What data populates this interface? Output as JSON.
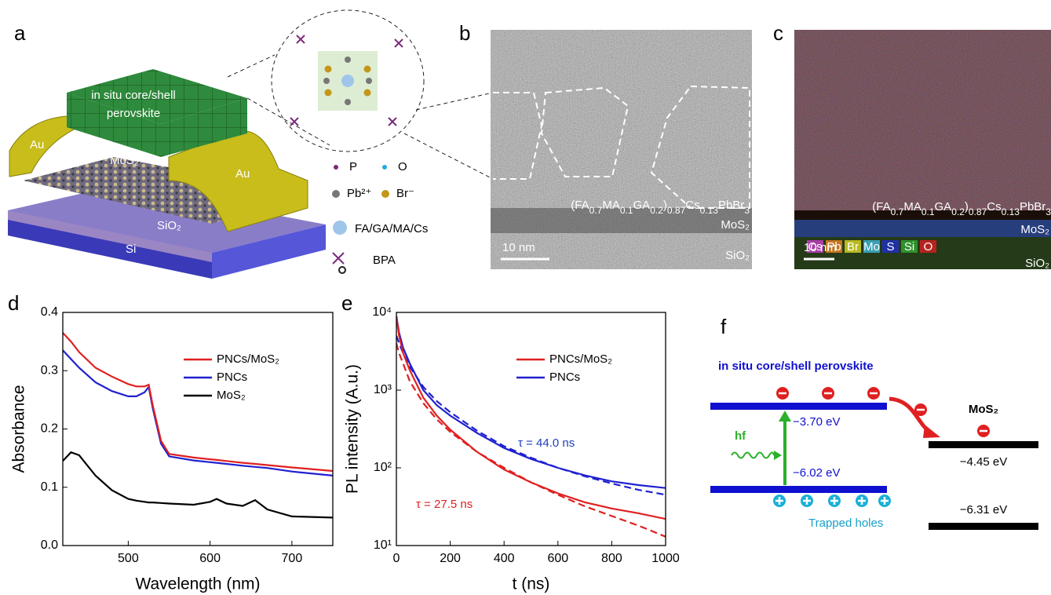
{
  "figure": {
    "a": {
      "label": "a",
      "top": "in situ core/shell",
      "top2": "perovskite",
      "au_left": "Au",
      "au_right": "Au",
      "mos2": "MoS₂",
      "sio2": "SiO₂",
      "si": "Si",
      "legend": [
        "P",
        "O",
        "Pb²⁺",
        "Br⁻",
        "FA/GA/MA/Cs",
        "BPA"
      ]
    },
    "b": {
      "label": "b",
      "formula": [
        "(FA",
        "0.7",
        "MA",
        "0.1",
        "GA",
        "0.2",
        ")",
        "0.87",
        "Cs",
        "0.13",
        "PbBr",
        "3"
      ],
      "mos2": "MoS₂",
      "sio2": "SiO₂",
      "scale": "10 nm"
    },
    "c": {
      "label": "c",
      "formula": [
        "(FA",
        "0.7",
        "MA",
        "0.1",
        "GA",
        "0.2",
        ")",
        "0.87",
        "Cs",
        "0.13",
        "PbBr",
        "3"
      ],
      "mos2": "MoS₂",
      "sio2": "SiO₂",
      "scale": "10 nm",
      "elements": [
        "Cs",
        "Pb",
        "Br",
        "Mo",
        "S",
        "Si",
        "O"
      ]
    },
    "f": {
      "label": "f",
      "title": "in situ core/shell perovskite",
      "cbm": "−3.70 eV",
      "vbm": "−6.02 eV",
      "hf": "hf",
      "holes": "Trapped holes",
      "mos2": "MoS₂",
      "mos2_cbm": "−4.45 eV",
      "mos2_vbm": "−6.31 eV"
    }
  },
  "chart_data": [
    {
      "type": "line",
      "label": "d",
      "xlabel": "Wavelength (nm)",
      "ylabel": "Absorbance",
      "x": [
        420,
        430,
        440,
        460,
        480,
        500,
        510,
        520,
        525,
        530,
        540,
        550,
        580,
        600,
        608,
        620,
        640,
        655,
        670,
        700,
        750
      ],
      "series": [
        {
          "name": "PNCs/MoS₂",
          "color": "#e02020",
          "values": [
            0.365,
            0.35,
            0.332,
            0.305,
            0.29,
            0.277,
            0.273,
            0.273,
            0.276,
            0.24,
            0.18,
            0.157,
            0.151,
            0.148,
            0.147,
            0.145,
            0.142,
            0.14,
            0.138,
            0.134,
            0.128
          ]
        },
        {
          "name": "PNCs",
          "color": "#2020d0",
          "values": [
            0.335,
            0.32,
            0.305,
            0.28,
            0.265,
            0.256,
            0.256,
            0.263,
            0.272,
            0.235,
            0.175,
            0.153,
            0.146,
            0.143,
            0.142,
            0.14,
            0.137,
            0.135,
            0.133,
            0.127,
            0.12
          ]
        },
        {
          "name": "MoS₂",
          "color": "#000000",
          "values": [
            0.145,
            0.16,
            0.155,
            0.12,
            0.095,
            0.08,
            0.077,
            0.075,
            0.074,
            0.074,
            0.073,
            0.072,
            0.07,
            0.075,
            0.08,
            0.072,
            0.068,
            0.078,
            0.062,
            0.05,
            0.048
          ]
        }
      ],
      "xlim": [
        420,
        750
      ],
      "xticks": [
        500,
        600,
        700
      ],
      "ylim": [
        0,
        0.4
      ],
      "yticks": [
        {
          "value": 0,
          "label": "0.0"
        },
        0.1,
        0.2,
        0.3,
        0.4
      ],
      "legend": "upper right"
    },
    {
      "type": "line",
      "label": "e",
      "xlabel": "t (ns)",
      "ylabel": "PL intensity (A.u.)",
      "log_y": true,
      "x": [
        0,
        10,
        25,
        50,
        100,
        150,
        200,
        300,
        400,
        500,
        600,
        700,
        800,
        900,
        1000
      ],
      "series": [
        {
          "name": "PNCs/MoS₂",
          "color": "#e02020",
          "values": [
            9000,
            5000,
            3000,
            1800,
            800,
            470,
            310,
            160,
            95,
            65,
            47,
            36,
            30,
            26,
            22
          ]
        },
        {
          "name": "PNCs",
          "color": "#2020d0",
          "values": [
            9000,
            5500,
            3500,
            2200,
            1000,
            640,
            470,
            280,
            180,
            130,
            100,
            80,
            67,
            60,
            55
          ]
        },
        {
          "color": "#e02020",
          "dash": true,
          "values": [
            4000,
            3000,
            2200,
            1300,
            680,
            420,
            290,
            160,
            100,
            65,
            45,
            32,
            24,
            18,
            13
          ]
        },
        {
          "color": "#2020d0",
          "dash": true,
          "values": [
            5000,
            4000,
            3000,
            2000,
            1100,
            720,
            520,
            300,
            190,
            135,
            100,
            78,
            63,
            52,
            45
          ]
        }
      ],
      "xlim": [
        0,
        1000
      ],
      "xticks": [
        0,
        200,
        400,
        600,
        800,
        1000
      ],
      "ylim": [
        10,
        10000
      ],
      "yticks": [
        {
          "value": 10,
          "label": "10¹"
        },
        {
          "value": 100,
          "label": "10²"
        },
        {
          "value": 1000,
          "label": "10³"
        },
        {
          "value": 10000,
          "label": "10⁴"
        }
      ],
      "legend": "upper right",
      "annotations": [
        {
          "text": "τ = 44.0 ns",
          "color": "#2040c0"
        },
        {
          "text": "τ = 27.5 ns",
          "color": "#e02020"
        }
      ]
    }
  ]
}
